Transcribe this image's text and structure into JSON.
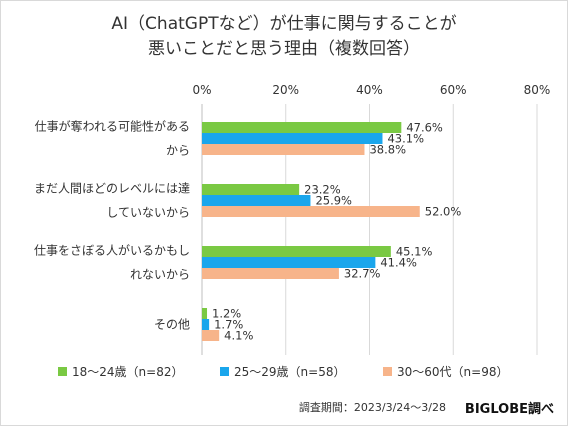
{
  "title_lines": [
    "AI（ChatGPTなど）が仕事に関与することが",
    "悪いことだと思う理由（複数回答）"
  ],
  "footer": {
    "survey_period": "調査期間：2023/3/24～3/28",
    "brand": "BIGLOBE調べ"
  },
  "colors": {
    "series": [
      "#7ac943",
      "#1aa6ec",
      "#f7b48a"
    ]
  },
  "chart_data": {
    "type": "bar",
    "orientation": "horizontal",
    "categories": [
      [
        "仕事が奪われる可能性がある",
        "から"
      ],
      [
        "まだ人間ほどのレベルには達",
        "していないから"
      ],
      [
        "仕事をさぼる人がいるかもし",
        "れないから"
      ],
      [
        "その他"
      ]
    ],
    "series": [
      {
        "name": "18～24歳（n=82）",
        "values": [
          47.6,
          23.2,
          45.1,
          1.2
        ]
      },
      {
        "name": "25～29歳（n=58）",
        "values": [
          43.1,
          25.9,
          41.4,
          1.7
        ]
      },
      {
        "name": "30～60代（n=98）",
        "values": [
          38.8,
          52.0,
          32.7,
          4.1
        ]
      }
    ],
    "x_ticks": [
      "0%",
      "20%",
      "40%",
      "60%",
      "80%"
    ],
    "xlim": [
      0,
      80
    ],
    "value_suffix": "%",
    "legend_position": "bottom",
    "grid": true
  }
}
